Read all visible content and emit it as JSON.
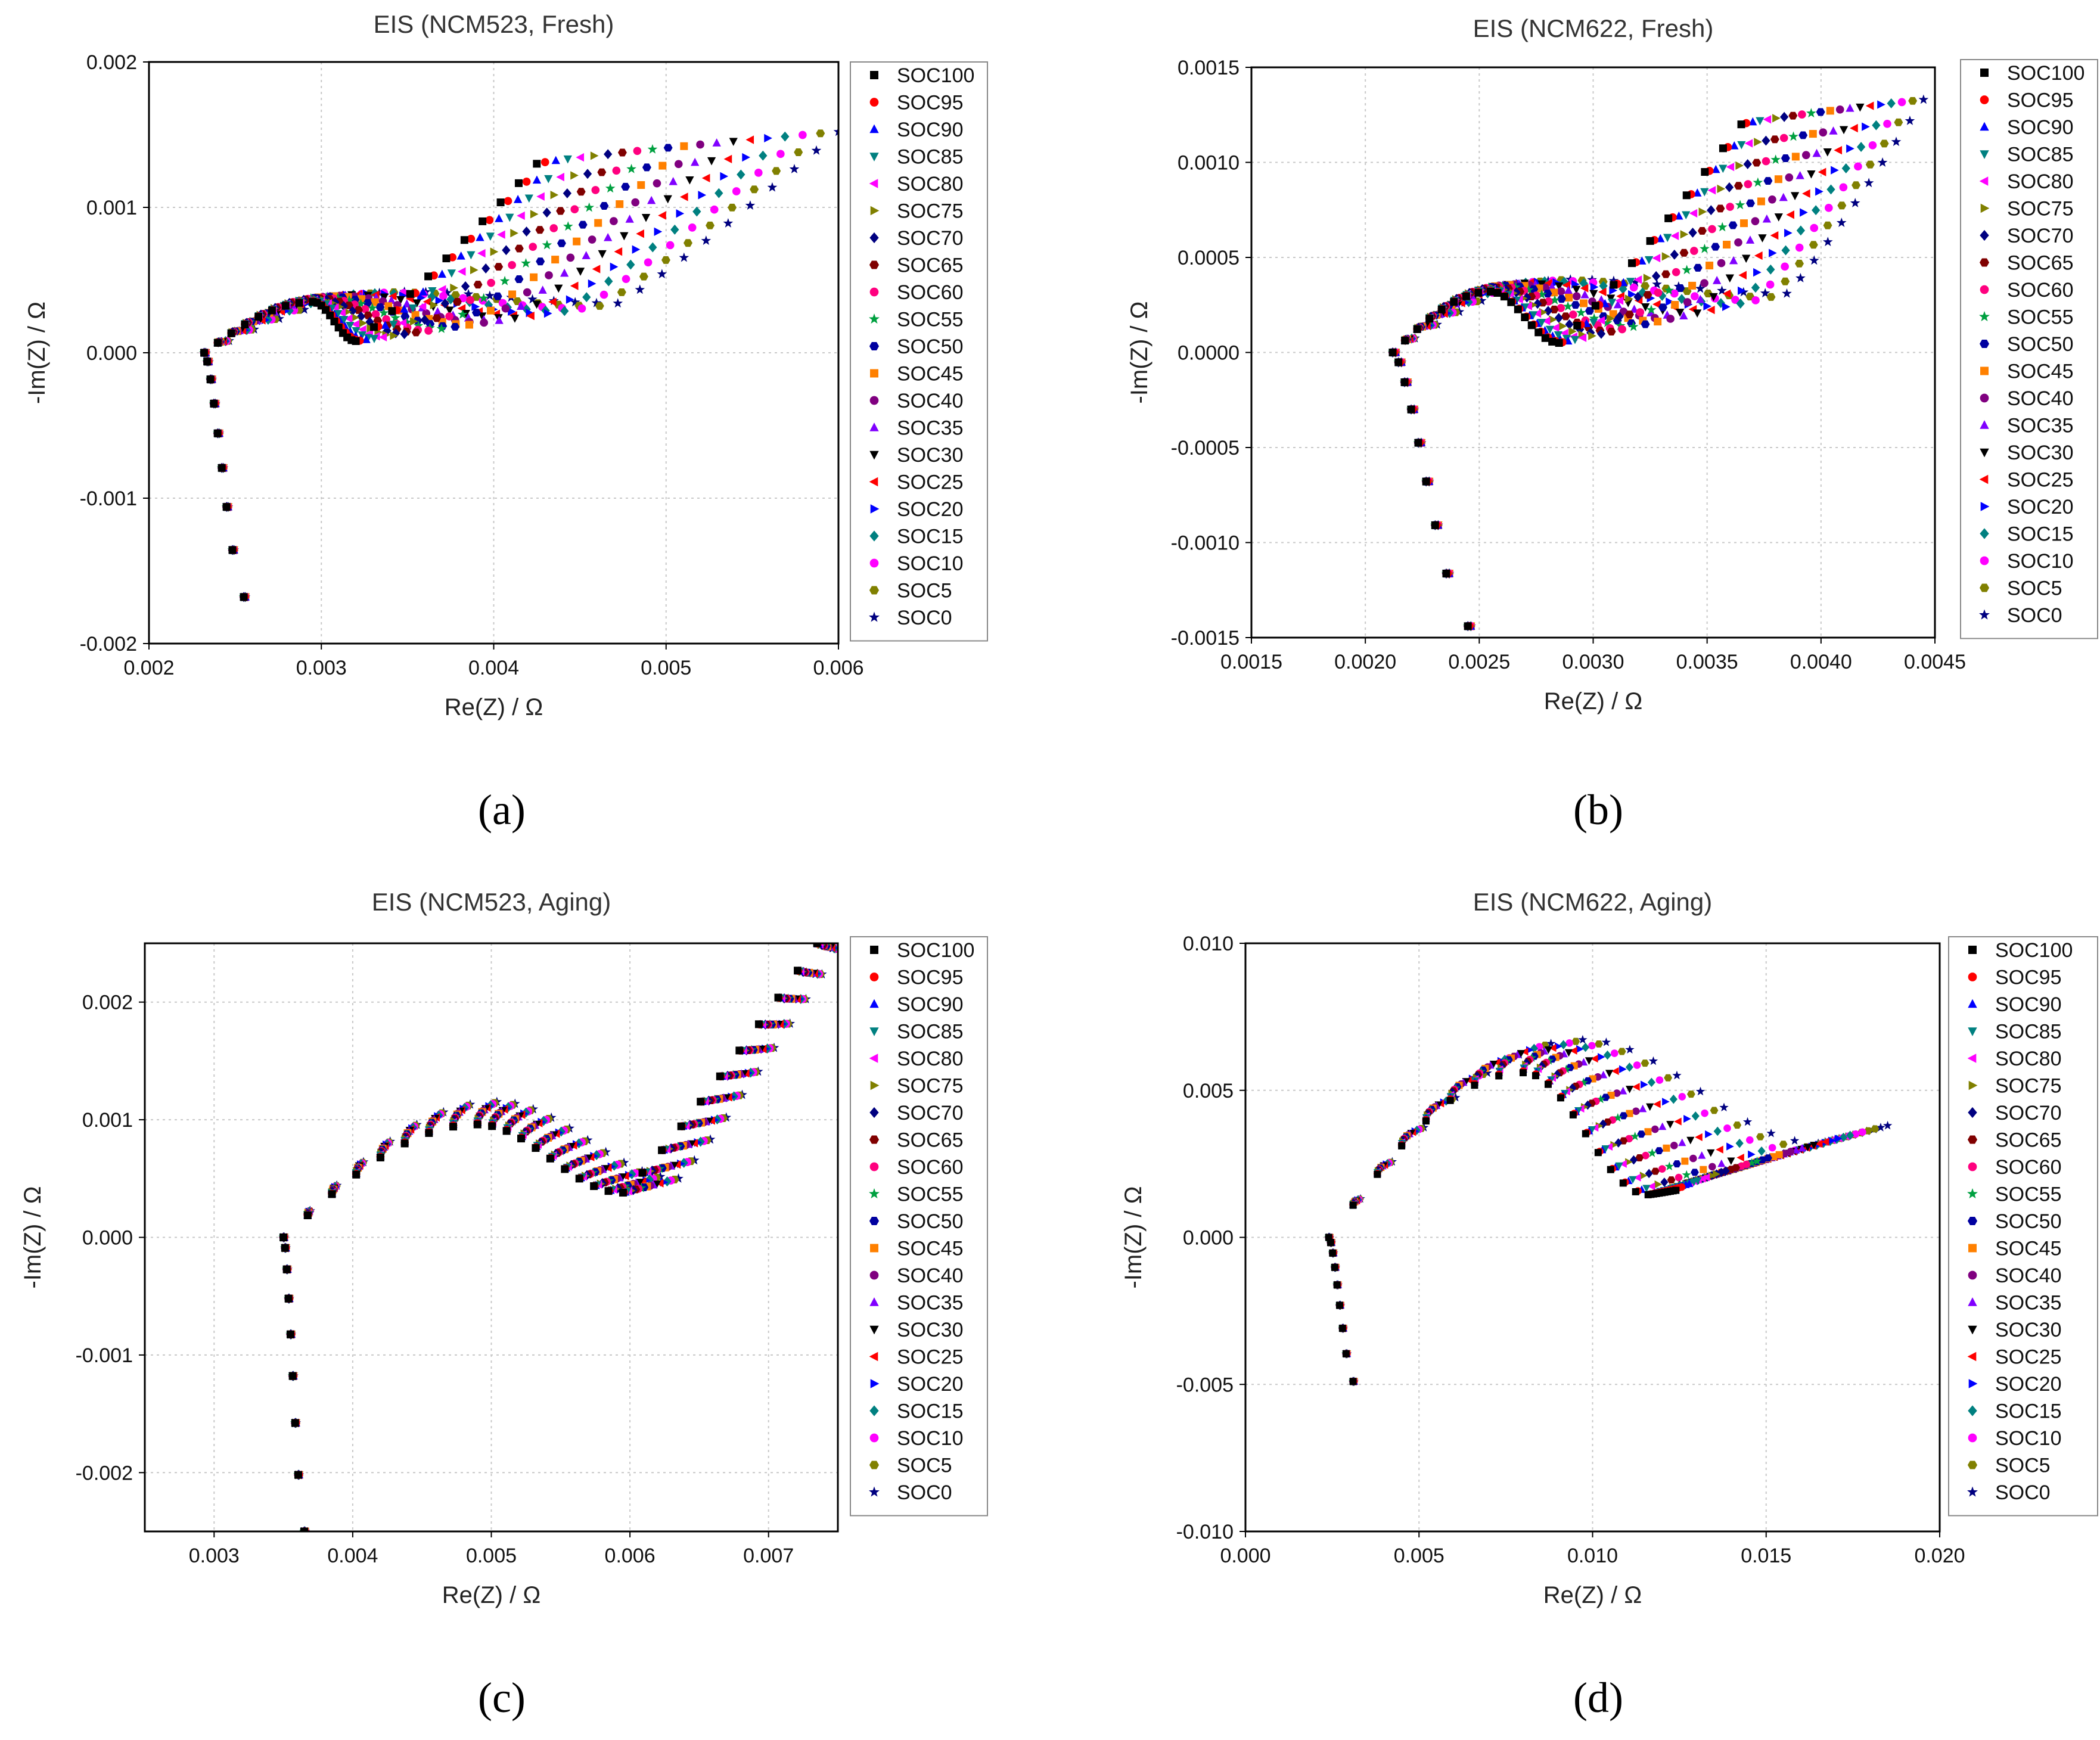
{
  "colors": [
    "#000000",
    "#ff0000",
    "#0000ff",
    "#008080",
    "#ff00ff",
    "#808000",
    "#000080",
    "#800000",
    "#ff007f",
    "#00a040",
    "#0000a0",
    "#ff8000",
    "#800080",
    "#8000ff",
    "#000000",
    "#ff0000",
    "#0000ff",
    "#008080",
    "#ff00ff",
    "#808000",
    "#000080"
  ],
  "symbols": [
    "square",
    "circle",
    "triangle-up",
    "triangle-down",
    "triangle-left",
    "triangle-right",
    "diamond",
    "hexagon",
    "circle",
    "star",
    "hexagon",
    "square",
    "circle",
    "triangle-up",
    "triangle-down",
    "triangle-left",
    "triangle-right",
    "diamond",
    "circle",
    "hexagon",
    "star"
  ],
  "legend": [
    "SOC100",
    "SOC95",
    "SOC90",
    "SOC85",
    "SOC80",
    "SOC75",
    "SOC70",
    "SOC65",
    "SOC60",
    "SOC55",
    "SOC50",
    "SOC45",
    "SOC40",
    "SOC35",
    "SOC30",
    "SOC25",
    "SOC20",
    "SOC15",
    "SOC10",
    "SOC5",
    "SOC0"
  ],
  "captions": [
    "(a)",
    "(b)",
    "(c)",
    "(d)"
  ],
  "chart_data": [
    {
      "type": "scatter",
      "title": "EIS (NCM523, Fresh)",
      "xlabel": "Re(Z) / Ω",
      "ylabel": "-Im(Z) / Ω",
      "xlim": [
        0.002,
        0.006
      ],
      "ylim": [
        -0.002,
        0.002
      ],
      "xticks": [
        "0.002",
        "0.003",
        "0.004",
        "0.005",
        "0.006"
      ],
      "yticks": [
        "-0.002",
        "-0.001",
        "0.000",
        "0.001",
        "0.002"
      ],
      "series_model": {
        "ohmic_tail": {
          "x_start": 0.00232,
          "x_end": 0.00255,
          "y_min": -0.00168
        },
        "arc_peak": {
          "x": 0.00295,
          "y": 0.00035
        },
        "valley_first": {
          "x": 0.0032,
          "y": 8e-05
        },
        "valley_last": {
          "x": 0.00472,
          "y": 0.00034
        },
        "tail_end_first": {
          "x": 0.00425,
          "y": 0.0013
        },
        "tail_end_last": {
          "x": 0.006,
          "y": 0.00152
        }
      }
    },
    {
      "type": "scatter",
      "title": "EIS (NCM622, Fresh)",
      "xlabel": "Re(Z) / Ω",
      "ylabel": "-Im(Z) / Ω",
      "xlim": [
        0.0015,
        0.0045
      ],
      "ylim": [
        -0.0015,
        0.0015
      ],
      "xticks": [
        "0.0015",
        "0.0020",
        "0.0025",
        "0.0030",
        "0.0035",
        "0.0040",
        "0.0045"
      ],
      "yticks": [
        "-0.0015",
        "-0.0010",
        "-0.0005",
        "0.0000",
        "0.0005",
        "0.0010",
        "0.0015"
      ],
      "series_model": {
        "ohmic_tail": {
          "x_start": 0.00212,
          "x_end": 0.00245,
          "y_min": -0.00144
        },
        "arc_peak": {
          "x": 0.00255,
          "y": 0.00032
        },
        "valley_first": {
          "x": 0.00285,
          "y": 5e-05
        },
        "valley_last": {
          "x": 0.00385,
          "y": 0.00031
        },
        "tail_end_first": {
          "x": 0.00365,
          "y": 0.0012
        },
        "tail_end_last": {
          "x": 0.00445,
          "y": 0.00133
        }
      }
    },
    {
      "type": "scatter",
      "title": "EIS (NCM523, Aging)",
      "xlabel": "Re(Z) / Ω",
      "ylabel": "-Im(Z) / Ω",
      "xlim": [
        0.0025,
        0.0075
      ],
      "ylim": [
        -0.0025,
        0.0025
      ],
      "xticks": [
        "0.003",
        "0.004",
        "0.005",
        "0.006",
        "0.007"
      ],
      "yticks": [
        "-0.002",
        "-0.001",
        "0.000",
        "0.001",
        "0.002"
      ],
      "series_model": {
        "ohmic_tail": {
          "x_start": 0.0035,
          "x_end": 0.00365,
          "y_min": -0.0025
        },
        "arc_peak": {
          "x": 0.0049,
          "y": 0.00096
        },
        "valley_first": {
          "x": 0.00595,
          "y": 0.00038
        },
        "valley_last": {
          "x": 0.00635,
          "y": 0.0005
        },
        "tail_end_first": {
          "x": 0.00735,
          "y": 0.0025
        },
        "tail_end_last": {
          "x": 0.0075,
          "y": 0.00245
        }
      }
    },
    {
      "type": "scatter",
      "title": "EIS (NCM622, Aging)",
      "xlabel": "Re(Z) / Ω",
      "ylabel": "-Im(Z) / Ω",
      "xlim": [
        0.0,
        0.02
      ],
      "ylim": [
        -0.01,
        0.01
      ],
      "xticks": [
        "0.000",
        "0.005",
        "0.010",
        "0.015",
        "0.020"
      ],
      "yticks": [
        "-0.010",
        "-0.005",
        "0.000",
        "0.005",
        "0.010"
      ],
      "series_model": {
        "ohmic_tail": {
          "x_start": 0.0024,
          "x_end": 0.0031,
          "y_min": -0.0049
        },
        "arc_peak": {
          "x": 0.008,
          "y": 0.0056
        },
        "valley_first": {
          "x": 0.0116,
          "y": 0.00145
        },
        "valley_last": {
          "x": 0.0165,
          "y": 0.0032
        },
        "tail_end_first": {
          "x": 0.0124,
          "y": 0.0016
        },
        "tail_end_last": {
          "x": 0.0185,
          "y": 0.0038
        }
      }
    }
  ]
}
